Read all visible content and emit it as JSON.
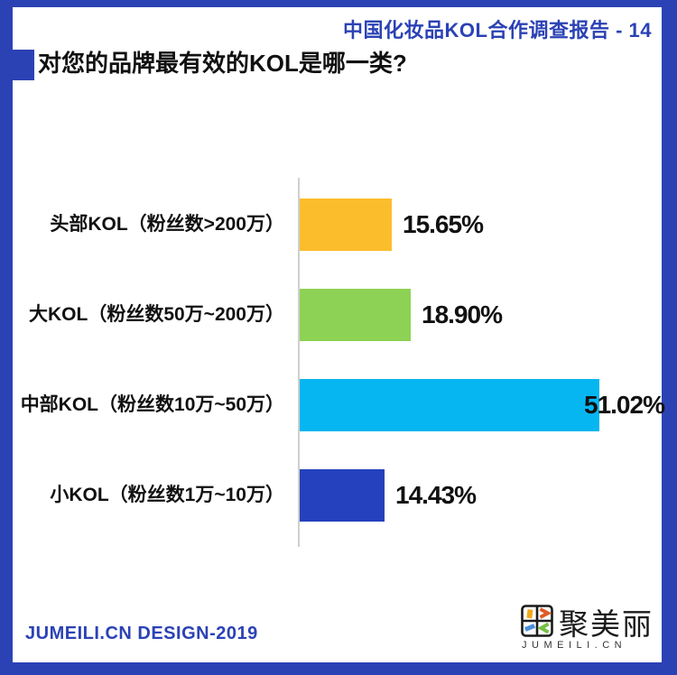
{
  "colors": {
    "accent_blue": "#2B42B5",
    "axis_line": "#CFCFCF",
    "text_black": "#111111"
  },
  "header": {
    "report_title": "中国化妆品KOL合作调查报告 - 14"
  },
  "page_title": "对您的品牌最有效的KOL是哪一类?",
  "chart_data": {
    "type": "bar",
    "orientation": "horizontal",
    "title": "对您的品牌最有效的KOL是哪一类?",
    "categories": [
      "头部KOL（粉丝数>200万）",
      "大KOL（粉丝数50万~200万）",
      "中部KOL（粉丝数10万~50万）",
      "小KOL（粉丝数1万~10万）"
    ],
    "values": [
      15.65,
      18.9,
      51.02,
      14.43
    ],
    "value_labels": [
      "15.65%",
      "18.90%",
      "51.02%",
      "14.43%"
    ],
    "bar_colors": [
      "#FCBD2D",
      "#8DD254",
      "#06B6F1",
      "#2541BD"
    ],
    "unit": "%",
    "xlim": [
      0,
      55
    ],
    "grid": false,
    "legend": false,
    "xlabel": "",
    "ylabel": ""
  },
  "footer": {
    "credit": "JUMEILI.CN DESIGN-2019",
    "logo_text_cn": "聚美丽",
    "logo_text_en": "JUMEILI.CN"
  }
}
